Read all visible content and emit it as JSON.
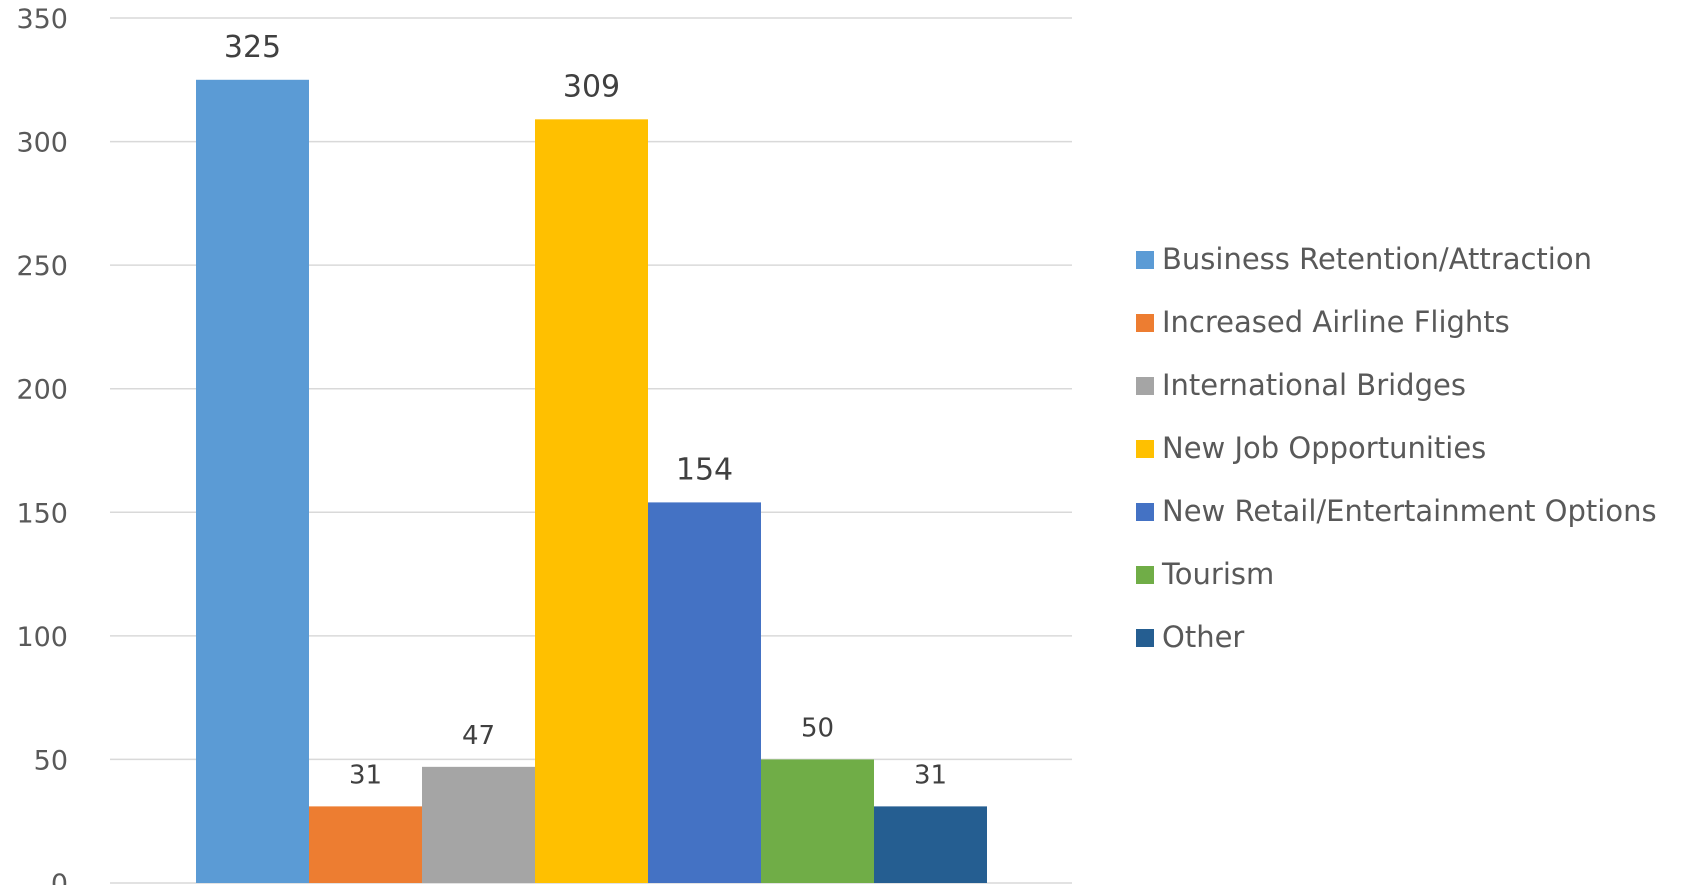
{
  "chart_data": {
    "type": "bar",
    "title": "",
    "xlabel": "",
    "ylabel": "",
    "ylim": [
      0,
      350
    ],
    "y_ticks": [
      0,
      50,
      100,
      150,
      200,
      250,
      300,
      350
    ],
    "grid": true,
    "legend_position": "right",
    "series": [
      {
        "name": "Business Retention/Attraction",
        "value": 325,
        "color": "#5B9BD5"
      },
      {
        "name": "Increased Airline Flights",
        "value": 31,
        "color": "#ED7D31"
      },
      {
        "name": "International Bridges",
        "value": 47,
        "color": "#A5A5A5"
      },
      {
        "name": "New Job Opportunities",
        "value": 309,
        "color": "#FFC000"
      },
      {
        "name": "New Retail/Entertainment Options",
        "value": 154,
        "color": "#4472C4"
      },
      {
        "name": "Tourism",
        "value": 50,
        "color": "#70AD47"
      },
      {
        "name": "Other",
        "value": 31,
        "color": "#255E91"
      }
    ]
  }
}
